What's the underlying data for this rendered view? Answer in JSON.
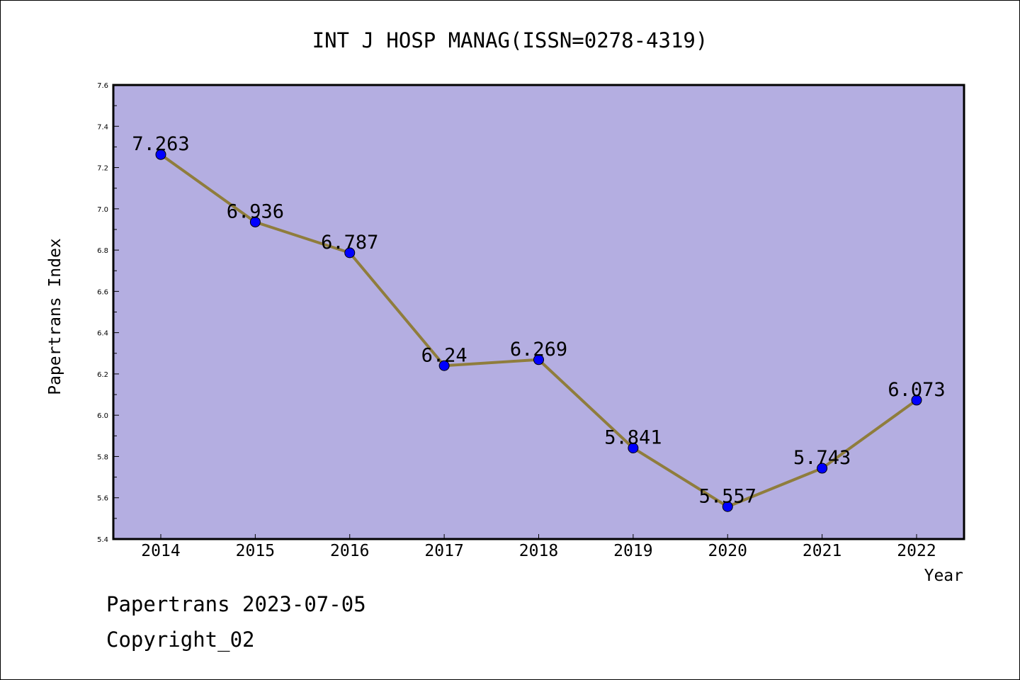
{
  "chart_data": {
    "type": "line",
    "title": "INT J HOSP MANAG(ISSN=0278-4319)",
    "xlabel": "Year",
    "ylabel": "Papertrans Index",
    "x": [
      "2014",
      "2015",
      "2016",
      "2017",
      "2018",
      "2019",
      "2020",
      "2021",
      "2022"
    ],
    "series": [
      {
        "values": [
          7.263,
          6.936,
          6.787,
          6.24,
          6.269,
          5.841,
          5.557,
          5.743,
          6.073
        ],
        "labels": [
          "7.263",
          "6.936",
          "6.787",
          "6.24",
          "6.269",
          "5.841",
          "5.557",
          "5.743",
          "6.073"
        ]
      }
    ],
    "ylim": [
      5.4,
      7.6
    ],
    "yticks": [
      "5.4",
      "5.6",
      "5.8",
      "6.0",
      "6.2",
      "6.4",
      "6.6",
      "6.8",
      "7.0",
      "7.2",
      "7.4",
      "7.6"
    ],
    "grid": false,
    "legend": "none",
    "colors": {
      "plot_background": "#b4aee1",
      "line": "#8f7d3c",
      "marker": "#0000ff"
    }
  },
  "footer": {
    "source": "Papertrans 2023-07-05",
    "copyright": "Copyright_02"
  }
}
